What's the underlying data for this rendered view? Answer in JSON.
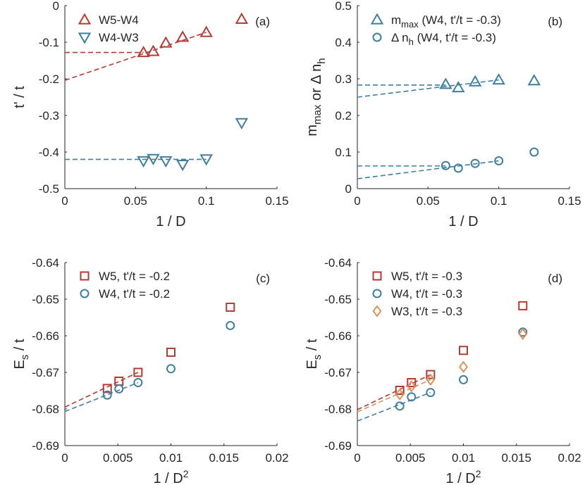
{
  "colors": {
    "red": "#b23b33",
    "blue": "#3f7e9c",
    "orange": "#d9925a",
    "axis": "#262626"
  },
  "chart_data": [
    {
      "type": "scatter",
      "panel": "(a)",
      "title": "",
      "xlabel": "1 / D",
      "ylabel": "t' / t",
      "xlim": [
        0,
        0.15
      ],
      "ylim": [
        -0.5,
        0
      ],
      "xticks": [
        0,
        0.05,
        0.1,
        0.15
      ],
      "xtick_labels": [
        "0",
        "0.05",
        "0.1",
        "0.15"
      ],
      "yticks": [
        0,
        -0.1,
        -0.2,
        -0.3,
        -0.4,
        -0.5
      ],
      "ytick_labels": [
        "0",
        "-0.1",
        "-0.2",
        "-0.3",
        "-0.4",
        "-0.5"
      ],
      "legend_position": "top-left",
      "grid": false,
      "series": [
        {
          "name": "W5-W4",
          "color": "red",
          "marker": "triangle-up",
          "x": [
            0.0556,
            0.0625,
            0.0714,
            0.0833,
            0.1,
            0.125
          ],
          "y": [
            -0.128,
            -0.125,
            -0.102,
            -0.086,
            -0.073,
            -0.037
          ]
        }
      ],
      "series_more": [
        {
          "name": "W4-W3",
          "color": "blue",
          "marker": "triangle-down",
          "x": [
            0.0556,
            0.0625,
            0.0714,
            0.0833,
            0.1,
            0.125
          ],
          "y": [
            -0.424,
            -0.418,
            -0.424,
            -0.434,
            -0.419,
            -0.32
          ]
        }
      ],
      "fits": [
        {
          "color": "red",
          "points": [
            [
              0,
              -0.128
            ],
            [
              0.0556,
              -0.128
            ]
          ]
        },
        {
          "color": "red",
          "points": [
            [
              0,
              -0.204
            ],
            [
              0.1,
              -0.073
            ]
          ]
        },
        {
          "color": "blue",
          "points": [
            [
              0,
              -0.42
            ],
            [
              0.1,
              -0.42
            ]
          ]
        }
      ]
    },
    {
      "type": "scatter",
      "panel": "(b)",
      "title": "",
      "xlabel": "1 / D",
      "ylabel_parts": [
        [
          "m",
          "max"
        ],
        [
          " or Δ n",
          "h"
        ]
      ],
      "xlim": [
        0,
        0.15
      ],
      "ylim": [
        0,
        0.5
      ],
      "xticks": [
        0,
        0.05,
        0.1,
        0.15
      ],
      "xtick_labels": [
        "0",
        "0.05",
        "0.1",
        "0.15"
      ],
      "yticks": [
        0,
        0.1,
        0.2,
        0.3,
        0.4,
        0.5
      ],
      "ytick_labels": [
        "0",
        "0.1",
        "0.2",
        "0.3",
        "0.4",
        "0.5"
      ],
      "legend_position": "top-left",
      "legend_entries": [
        {
          "main": "m",
          "sub": "max",
          "rest": " (W4, t'/t = -0.3)"
        },
        {
          "main": "Δ n",
          "sub": "h",
          "rest": " (W4, t'/t = -0.3)"
        }
      ],
      "grid": false,
      "series": [
        {
          "color": "blue",
          "marker": "triangle-up",
          "x": [
            0.0625,
            0.0714,
            0.0833,
            0.1,
            0.125
          ],
          "y": [
            0.285,
            0.276,
            0.292,
            0.297,
            0.295
          ]
        }
      ],
      "series_more": [
        {
          "color": "blue",
          "marker": "circle",
          "x": [
            0.0625,
            0.0714,
            0.0833,
            0.1,
            0.125
          ],
          "y": [
            0.063,
            0.056,
            0.069,
            0.076,
            0.1
          ]
        }
      ],
      "fits": [
        {
          "color": "blue",
          "points": [
            [
              0,
              0.283
            ],
            [
              0.0625,
              0.283
            ]
          ]
        },
        {
          "color": "blue",
          "points": [
            [
              0,
              0.25
            ],
            [
              0.1,
              0.297
            ]
          ]
        },
        {
          "color": "blue",
          "points": [
            [
              0,
              0.062
            ],
            [
              0.0625,
              0.062
            ]
          ]
        },
        {
          "color": "blue",
          "points": [
            [
              0,
              0.027
            ],
            [
              0.1,
              0.076
            ]
          ]
        }
      ]
    },
    {
      "type": "scatter",
      "panel": "(c)",
      "title": "",
      "xlabel": "1 / D²",
      "ylabel": "E_s / t",
      "xlim": [
        0,
        0.02
      ],
      "ylim": [
        -0.69,
        -0.64
      ],
      "xticks": [
        0,
        0.005,
        0.01,
        0.015,
        0.02
      ],
      "xtick_labels": [
        "0",
        "0.005",
        "0.01",
        "0.015",
        "0.02"
      ],
      "yticks": [
        -0.64,
        -0.65,
        -0.66,
        -0.67,
        -0.68,
        -0.69
      ],
      "ytick_labels": [
        "-0.64",
        "-0.65",
        "-0.66",
        "-0.67",
        "-0.68",
        "-0.69"
      ],
      "legend_position": "top-left",
      "grid": false,
      "series": [
        {
          "name": "W5, t'/t = -0.2",
          "color": "red",
          "marker": "square",
          "x": [
            0.004,
            0.0051,
            0.0069,
            0.01,
            0.0156
          ],
          "y": [
            -0.6744,
            -0.6724,
            -0.67,
            -0.6645,
            -0.6522
          ]
        }
      ],
      "series_more": [
        {
          "name": "W4, t'/t = -0.2",
          "color": "blue",
          "marker": "circle",
          "x": [
            0.004,
            0.0051,
            0.0069,
            0.01,
            0.0156
          ],
          "y": [
            -0.6762,
            -0.6745,
            -0.6728,
            -0.669,
            -0.6572
          ]
        }
      ],
      "fits": [
        {
          "color": "red",
          "points": [
            [
              0,
              -0.6795
            ],
            [
              0.0069,
              -0.67
            ]
          ]
        },
        {
          "color": "blue",
          "points": [
            [
              0,
              -0.6807
            ],
            [
              0.0069,
              -0.6728
            ]
          ]
        }
      ]
    },
    {
      "type": "scatter",
      "panel": "(d)",
      "title": "",
      "xlabel": "1 / D²",
      "ylabel": "E_s / t",
      "xlim": [
        0,
        0.02
      ],
      "ylim": [
        -0.69,
        -0.64
      ],
      "xticks": [
        0,
        0.005,
        0.01,
        0.015,
        0.02
      ],
      "xtick_labels": [
        "0",
        "0.005",
        "0.01",
        "0.015",
        "0.02"
      ],
      "yticks": [
        -0.64,
        -0.65,
        -0.66,
        -0.67,
        -0.68,
        -0.69
      ],
      "ytick_labels": [
        "-0.64",
        "-0.65",
        "-0.66",
        "-0.67",
        "-0.68",
        "-0.69"
      ],
      "legend_position": "top-left",
      "grid": false,
      "series": [
        {
          "name": "W5, t'/t = -0.3",
          "color": "red",
          "marker": "square",
          "x": [
            0.004,
            0.0051,
            0.0069,
            0.01,
            0.0156
          ],
          "y": [
            -0.6749,
            -0.6728,
            -0.6706,
            -0.664,
            -0.6518
          ]
        }
      ],
      "series_more": [
        {
          "name": "W4, t'/t = -0.3",
          "color": "blue",
          "marker": "circle",
          "x": [
            0.004,
            0.0051,
            0.0069,
            0.01,
            0.0156
          ],
          "y": [
            -0.6792,
            -0.6767,
            -0.6755,
            -0.672,
            -0.659
          ]
        },
        {
          "name": "W3, t'/t = -0.3",
          "color": "orange",
          "marker": "diamond",
          "x": [
            0.004,
            0.0051,
            0.0069,
            0.01,
            0.0156
          ],
          "y": [
            -0.676,
            -0.6738,
            -0.672,
            -0.6685,
            -0.6595
          ]
        }
      ],
      "fits": [
        {
          "color": "red",
          "points": [
            [
              0,
              -0.6802
            ],
            [
              0.0069,
              -0.6706
            ]
          ]
        },
        {
          "color": "orange",
          "points": [
            [
              0,
              -0.6808
            ],
            [
              0.0069,
              -0.672
            ]
          ]
        },
        {
          "color": "blue",
          "points": [
            [
              0,
              -0.6833
            ],
            [
              0.0069,
              -0.6755
            ]
          ]
        }
      ]
    }
  ]
}
